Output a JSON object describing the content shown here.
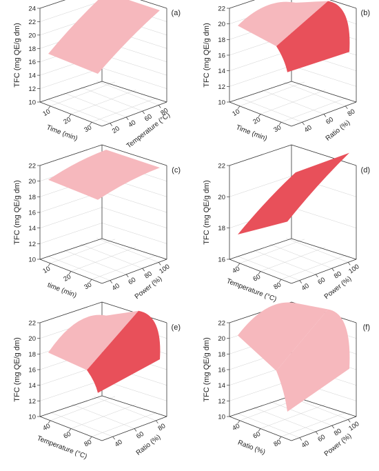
{
  "chart_data": [
    {
      "panel": "(a)",
      "type": "surface",
      "zlabel": "TFC (mg QE/g dm)",
      "zticks": [
        "10",
        "12",
        "14",
        "16",
        "18",
        "20",
        "22",
        "24"
      ],
      "xlabel": "Time (min)",
      "xticks": [
        "10",
        "20",
        "30"
      ],
      "ylabel": "Temperature (°C)",
      "yticks": [
        "20",
        "40",
        "60",
        "80"
      ],
      "surface": {
        "corners_z": [
          17.0,
          23.9,
          23.9,
          17.0
        ],
        "peak_z": null,
        "shade": "light"
      }
    },
    {
      "panel": "(b)",
      "type": "surface",
      "zlabel": "TFC (mg QE/g dm)",
      "zticks": [
        "10",
        "12",
        "14",
        "16",
        "18",
        "20",
        "22"
      ],
      "xlabel": "Time (min)",
      "xticks": [
        "10",
        "20",
        "30"
      ],
      "ylabel": "Ratio (%)",
      "yticks": [
        "40",
        "60",
        "80"
      ],
      "surface": {
        "corners_z": [
          19.6,
          20.6,
          16.6,
          16.2
        ],
        "peak_z": 21.6,
        "shade": "mixed"
      }
    },
    {
      "panel": "(c)",
      "type": "surface",
      "zlabel": "TFC (mg QE/g dm)",
      "zticks": [
        "10",
        "12",
        "14",
        "16",
        "18",
        "20",
        "22"
      ],
      "xlabel": "time (min)",
      "xticks": [
        "10",
        "20",
        "30"
      ],
      "ylabel": "Power (%)",
      "yticks": [
        "40",
        "60",
        "80",
        "100"
      ],
      "surface": {
        "corners_z": [
          20.0,
          21.9,
          21.9,
          20.0
        ],
        "peak_z": null,
        "shade": "light"
      }
    },
    {
      "panel": "(d)",
      "type": "surface",
      "zlabel": "TFC (mg QE/g dm)",
      "zticks": [
        "16",
        "18",
        "20",
        "22"
      ],
      "xlabel": "Temperature (°C)",
      "xticks": [
        "40",
        "60",
        "80"
      ],
      "ylabel": "Power (%)",
      "yticks": [
        "40",
        "60",
        "80",
        "100"
      ],
      "surface": {
        "corners_z": [
          17.5,
          20.5,
          22.9,
          19.6
        ],
        "peak_z": null,
        "shade": "dark"
      }
    },
    {
      "panel": "(e)",
      "type": "surface",
      "zlabel": "TFC (mg QE/g dm)",
      "zticks": [
        "10",
        "12",
        "14",
        "16",
        "18",
        "20",
        "22"
      ],
      "xlabel": "Temperature (°C)",
      "xticks": [
        "40",
        "60",
        "80"
      ],
      "ylabel": "Ratio (%)",
      "yticks": [
        "40",
        "60",
        "80"
      ],
      "surface": {
        "corners_z": [
          18.0,
          20.8,
          17.5,
          15.4
        ],
        "peak_z": 22.2,
        "shade": "mixed"
      }
    },
    {
      "panel": "(f)",
      "type": "surface",
      "zlabel": "TFC (mg QE/g dm)",
      "zticks": [
        "10",
        "12",
        "14",
        "16",
        "18",
        "20",
        "22"
      ],
      "xlabel": "Ratio (%)",
      "xticks": [
        "40",
        "60",
        "80"
      ],
      "ylabel": "Power (%)",
      "yticks": [
        "40",
        "60",
        "80",
        "100"
      ],
      "surface": {
        "corners_z": [
          20.2,
          22.4,
          16.3,
          13.0
        ],
        "peak_z": 22.4,
        "shade": "light"
      }
    }
  ],
  "colors": {
    "surface_light": "#f6b8bd",
    "surface_dark": "#e8505a",
    "axes": "#333333",
    "grid": "#d0d0d0"
  }
}
